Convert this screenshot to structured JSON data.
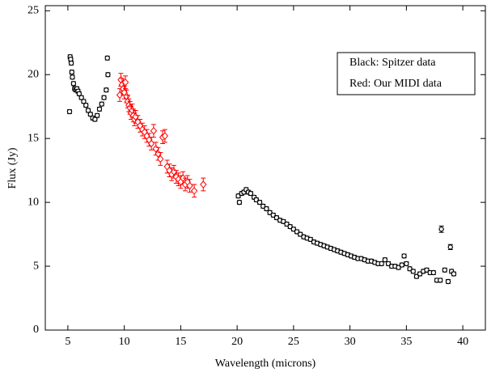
{
  "chart_data": {
    "type": "scatter",
    "x_label": "Wavelength  (microns)",
    "y_label": "Flux  (Jy)",
    "xlim": [
      3,
      42
    ],
    "ylim": [
      0,
      25.4
    ],
    "xticks": [
      5,
      10,
      15,
      20,
      25,
      30,
      35,
      40
    ],
    "yticks": [
      0,
      5,
      10,
      15,
      20,
      25
    ],
    "legend": "upper right",
    "series": [
      {
        "name": "Black:  Spitzer  data",
        "color": "#000000",
        "marker": "circle",
        "x": [
          5.15,
          5.2,
          5.25,
          5.3,
          5.35,
          5.4,
          5.5,
          5.6,
          5.7,
          5.8,
          5.9,
          6.0,
          6.2,
          6.4,
          6.6,
          6.8,
          7.0,
          7.2,
          7.4,
          7.6,
          7.8,
          8.0,
          8.2,
          8.4,
          8.5,
          8.55,
          20.1,
          20.2,
          20.4,
          20.6,
          20.8,
          21.0,
          21.2,
          21.5,
          21.7,
          22.0,
          22.3,
          22.6,
          22.9,
          23.2,
          23.5,
          23.8,
          24.1,
          24.4,
          24.7,
          25.0,
          25.3,
          25.6,
          25.9,
          26.2,
          26.5,
          26.8,
          27.1,
          27.4,
          27.7,
          28.0,
          28.3,
          28.6,
          28.9,
          29.2,
          29.5,
          29.8,
          30.1,
          30.4,
          30.7,
          31.0,
          31.3,
          31.6,
          31.9,
          32.2,
          32.5,
          32.8,
          33.1,
          33.4,
          33.7,
          34.0,
          34.3,
          34.6,
          34.8,
          35.0,
          35.3,
          35.6,
          35.9,
          36.2,
          36.5,
          36.8,
          37.1,
          37.4,
          37.7,
          38.0,
          38.1,
          38.4,
          38.7,
          38.9,
          39.0,
          39.2
        ],
        "values": [
          17.1,
          21.4,
          21.2,
          20.9,
          20.2,
          19.8,
          19.3,
          18.9,
          18.8,
          18.9,
          18.7,
          18.5,
          18.2,
          17.9,
          17.6,
          17.2,
          16.9,
          16.6,
          16.5,
          16.8,
          17.3,
          17.7,
          18.2,
          18.8,
          21.3,
          20.0,
          10.5,
          10.0,
          10.7,
          10.8,
          11.0,
          10.8,
          10.7,
          10.4,
          10.2,
          10.0,
          9.7,
          9.5,
          9.2,
          9.0,
          8.8,
          8.6,
          8.5,
          8.3,
          8.1,
          7.9,
          7.7,
          7.5,
          7.3,
          7.2,
          7.1,
          6.9,
          6.8,
          6.7,
          6.6,
          6.5,
          6.4,
          6.3,
          6.2,
          6.1,
          6.0,
          5.9,
          5.8,
          5.7,
          5.6,
          5.6,
          5.5,
          5.4,
          5.4,
          5.3,
          5.2,
          5.2,
          5.5,
          5.2,
          5.0,
          5.0,
          4.9,
          5.1,
          5.8,
          5.2,
          4.8,
          4.6,
          4.2,
          4.4,
          4.6,
          4.7,
          4.5,
          4.5,
          3.9,
          3.9,
          7.9,
          4.7,
          3.8,
          6.5,
          4.6,
          4.4
        ],
        "errors": [
          0.15,
          0.15,
          0.15,
          0.15,
          0.15,
          0.15,
          0.15,
          0.15,
          0.15,
          0.15,
          0.15,
          0.15,
          0.15,
          0.15,
          0.15,
          0.15,
          0.15,
          0.15,
          0.15,
          0.15,
          0.15,
          0.15,
          0.15,
          0.15,
          0.15,
          0.15,
          0.15,
          0.15,
          0.15,
          0.15,
          0.15,
          0.15,
          0.15,
          0.15,
          0.15,
          0.15,
          0.15,
          0.15,
          0.15,
          0.15,
          0.15,
          0.15,
          0.15,
          0.15,
          0.15,
          0.15,
          0.15,
          0.15,
          0.15,
          0.15,
          0.15,
          0.15,
          0.15,
          0.15,
          0.15,
          0.15,
          0.15,
          0.15,
          0.15,
          0.15,
          0.15,
          0.15,
          0.15,
          0.15,
          0.15,
          0.15,
          0.15,
          0.15,
          0.15,
          0.15,
          0.15,
          0.15,
          0.15,
          0.15,
          0.15,
          0.15,
          0.15,
          0.15,
          0.15,
          0.15,
          0.15,
          0.15,
          0.15,
          0.15,
          0.15,
          0.15,
          0.15,
          0.15,
          0.15,
          0.15,
          0.25,
          0.15,
          0.15,
          0.2,
          0.15,
          0.15
        ]
      },
      {
        "name": "Red:  Our  MIDI  data",
        "color": "#ff0000",
        "marker": "diamond",
        "x": [
          9.6,
          9.7,
          9.8,
          9.9,
          10.0,
          10.1,
          10.2,
          10.3,
          10.4,
          10.5,
          10.6,
          10.7,
          10.8,
          10.9,
          11.0,
          11.2,
          11.4,
          11.6,
          11.8,
          12.0,
          12.2,
          12.4,
          12.6,
          12.8,
          13.0,
          13.2,
          13.4,
          13.6,
          13.8,
          14.0,
          14.2,
          14.4,
          14.6,
          14.8,
          15.0,
          15.2,
          15.4,
          15.6,
          15.8,
          16.2,
          17.0
        ],
        "values": [
          18.4,
          19.6,
          19.2,
          18.9,
          18.6,
          19.4,
          18.3,
          17.9,
          17.6,
          17.4,
          17.0,
          17.2,
          16.8,
          16.5,
          16.7,
          16.3,
          16.0,
          15.7,
          15.5,
          15.2,
          14.9,
          14.6,
          15.6,
          14.2,
          13.8,
          13.4,
          15.1,
          15.2,
          12.8,
          12.5,
          12.2,
          12.4,
          12.0,
          11.8,
          11.6,
          11.9,
          11.4,
          11.6,
          11.3,
          10.9,
          11.4
        ],
        "errors": [
          0.5,
          0.5,
          0.5,
          0.5,
          0.5,
          0.5,
          0.5,
          0.5,
          0.5,
          0.5,
          0.5,
          0.5,
          0.5,
          0.5,
          0.5,
          0.5,
          0.5,
          0.5,
          0.5,
          0.5,
          0.5,
          0.5,
          0.5,
          0.5,
          0.5,
          0.5,
          0.5,
          0.5,
          0.5,
          0.5,
          0.5,
          0.5,
          0.5,
          0.5,
          0.5,
          0.5,
          0.5,
          0.5,
          0.5,
          0.5,
          0.5
        ]
      }
    ]
  }
}
